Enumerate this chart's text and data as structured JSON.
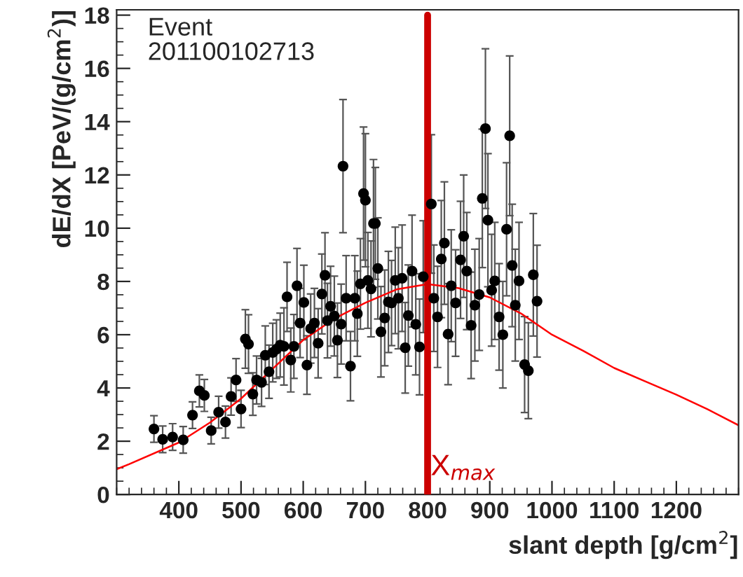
{
  "chart_data": {
    "type": "scatter",
    "xlabel": "slant depth [g/cm$^{2}$]",
    "ylabel": "dE/dX [PeV/(g/cm$^{2}$)]",
    "annotations": [
      "Event\n201100102713"
    ],
    "xlim": [
      300,
      1300
    ],
    "ylim": [
      0,
      18.2
    ],
    "xticks": [
      400,
      500,
      600,
      700,
      800,
      900,
      1000,
      1100,
      1200
    ],
    "yticks": [
      0,
      2,
      4,
      6,
      8,
      10,
      12,
      14,
      16,
      18
    ],
    "grid": false,
    "legend": false,
    "ref_lines": [
      {
        "axis": "x",
        "value": 800,
        "label": "X$_{max}$",
        "color": "#cc0000"
      }
    ],
    "series": [
      {
        "color": "#000000",
        "marker": "circle",
        "x": [
          360,
          374,
          390,
          407,
          422,
          433,
          441,
          452,
          464,
          475,
          484,
          492,
          500,
          507,
          512,
          519,
          525,
          533,
          539,
          545,
          551,
          557,
          563,
          569,
          574,
          580,
          585,
          590,
          595,
          601,
          606,
          612,
          618,
          624,
          630,
          635,
          639,
          644,
          650,
          655,
          661,
          664,
          669,
          676,
          683,
          687,
          692,
          697,
          700,
          704,
          709,
          713,
          716,
          720,
          725,
          731,
          737,
          742,
          748,
          753,
          759,
          764,
          769,
          775,
          781,
          787,
          793,
          806,
          810,
          816,
          822,
          827,
          833,
          838,
          845,
          853,
          858,
          863,
          870,
          876,
          883,
          888,
          893,
          897,
          903,
          908,
          915,
          921,
          927,
          932,
          936,
          941,
          947,
          956,
          962,
          970,
          976
        ],
        "values": [
          2.46,
          2.07,
          2.16,
          2.05,
          2.98,
          3.89,
          3.72,
          2.4,
          3.09,
          2.72,
          3.68,
          4.3,
          3.21,
          5.84,
          5.65,
          3.77,
          4.3,
          4.21,
          5.23,
          4.61,
          5.33,
          5.46,
          5.61,
          5.56,
          7.42,
          5.05,
          5.56,
          7.84,
          6.44,
          7.21,
          4.86,
          6.23,
          6.44,
          5.68,
          7.53,
          8.23,
          6.53,
          7.07,
          6.7,
          5.79,
          6.4,
          12.33,
          7.37,
          4.82,
          7.37,
          6.79,
          7.91,
          11.3,
          11.05,
          8.04,
          7.72,
          10.18,
          10.18,
          8.49,
          6.11,
          6.63,
          7.23,
          7.19,
          8.04,
          7.37,
          8.12,
          5.51,
          6.72,
          8.39,
          6.39,
          5.54,
          8.18,
          10.91,
          7.37,
          6.67,
          8.84,
          9.44,
          6.02,
          7.84,
          7.19,
          8.81,
          9.7,
          8.39,
          6.35,
          7.11,
          7.51,
          11.12,
          13.74,
          10.3,
          7.67,
          8.02,
          6.67,
          6.0,
          9.96,
          13.47,
          8.6,
          7.11,
          8.02,
          4.88,
          4.65,
          8.25,
          7.26
        ],
        "errors": [
          0.5,
          0.5,
          0.5,
          0.5,
          0.5,
          0.6,
          0.6,
          0.5,
          0.6,
          0.6,
          0.7,
          0.8,
          0.7,
          1.1,
          1.1,
          0.8,
          0.9,
          0.9,
          1.1,
          1.0,
          1.1,
          1.1,
          1.2,
          1.45,
          1.3,
          1.2,
          1.2,
          1.4,
          1.3,
          1.4,
          1.1,
          1.3,
          1.3,
          1.3,
          1.5,
          1.6,
          1.4,
          1.5,
          1.5,
          1.4,
          1.5,
          2.5,
          1.6,
          1.3,
          1.6,
          1.6,
          1.7,
          2.5,
          2.5,
          1.8,
          1.8,
          2.4,
          2.1,
          1.9,
          1.7,
          1.8,
          1.9,
          1.6,
          2.0,
          1.9,
          2.0,
          1.7,
          1.9,
          2.1,
          1.9,
          1.8,
          2.1,
          2.6,
          2.0,
          1.9,
          2.2,
          2.3,
          1.9,
          2.1,
          2.0,
          2.2,
          2.3,
          2.2,
          2.0,
          2.1,
          2.1,
          2.6,
          3.0,
          2.5,
          2.1,
          2.2,
          2.0,
          2.0,
          2.5,
          3.0,
          2.3,
          2.1,
          2.2,
          1.8,
          1.8,
          2.3,
          2.1
        ]
      },
      {
        "type": "line",
        "color": "#ff0000",
        "marker": "none",
        "x": [
          300,
          320,
          400,
          450,
          500,
          550,
          600,
          650,
          700,
          750,
          800,
          850,
          900,
          950,
          1000,
          1050,
          1100,
          1150,
          1200,
          1250,
          1300
        ],
        "values": [
          0.95,
          1.14,
          1.95,
          2.7,
          3.6,
          4.7,
          5.8,
          6.6,
          7.2,
          7.7,
          7.9,
          7.75,
          7.4,
          6.8,
          6.0,
          5.4,
          4.75,
          4.25,
          3.75,
          3.2,
          2.6
        ]
      }
    ]
  }
}
